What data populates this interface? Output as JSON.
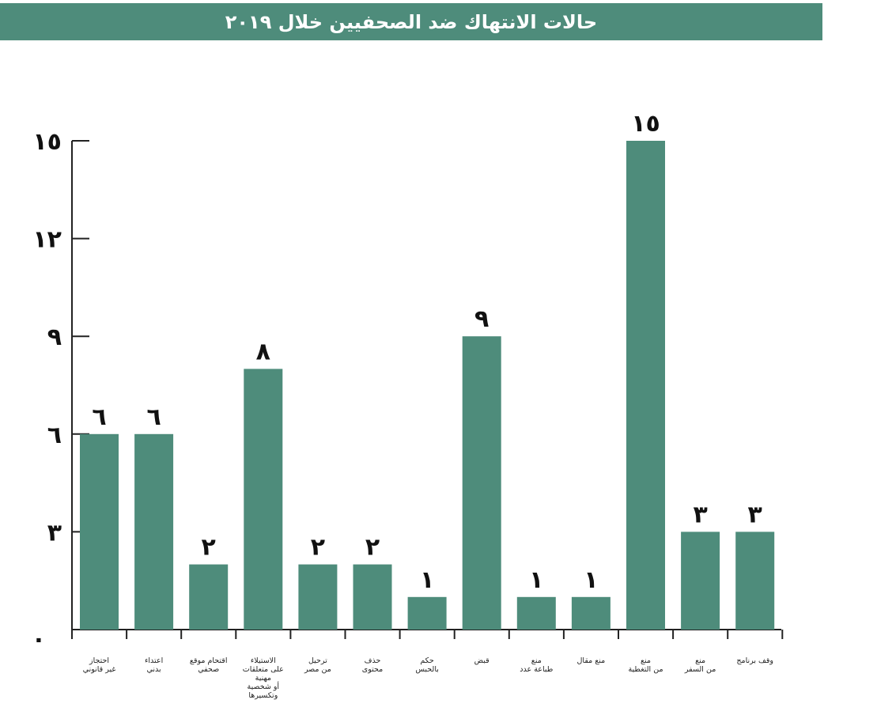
{
  "title": "حالات الانتهاك ضد الصحفيين خلال ٢٠١٩",
  "colors": {
    "bar": "#4e8c7b",
    "title_bg": "#4e8c7b",
    "axis": "#222222"
  },
  "chart_data": {
    "type": "bar",
    "title": "حالات الانتهاك ضد الصحفيين خلال ٢٠١٩",
    "categories": [
      [
        "احتجاز",
        "غير قانوني"
      ],
      [
        "اعتداء",
        "بدني"
      ],
      [
        "اقتحام موقع",
        "صحفي"
      ],
      [
        "الاستيلاء",
        "على متعلقات",
        "مهنية",
        "أو شخصية",
        "وتكسيرها"
      ],
      [
        "ترحيل",
        "من مصر"
      ],
      [
        "حذف",
        "محتوى"
      ],
      [
        "حكم",
        "بالحبس"
      ],
      [
        "قبض"
      ],
      [
        "منع",
        "طباعة عدد"
      ],
      [
        "منع مقال"
      ],
      [
        "منع",
        "من التغطية"
      ],
      [
        "منع",
        "من السفر"
      ],
      [
        "وقف برنامج"
      ]
    ],
    "values": [
      6,
      6,
      2,
      8,
      2,
      2,
      1,
      9,
      1,
      1,
      15,
      3,
      3
    ],
    "value_labels": [
      "٦",
      "٦",
      "٢",
      "٨",
      "٢",
      "٢",
      "١",
      "٩",
      "١",
      "١",
      "١٥",
      "٣",
      "٣"
    ],
    "yticks": [
      0,
      3,
      6,
      9,
      12,
      15
    ],
    "ytick_labels": [
      "٠",
      "٣",
      "٦",
      "٩",
      "١٢",
      "١٥"
    ],
    "ylim": [
      0,
      15
    ],
    "xlabel": "",
    "ylabel": "",
    "grid": false,
    "legend": "none"
  }
}
